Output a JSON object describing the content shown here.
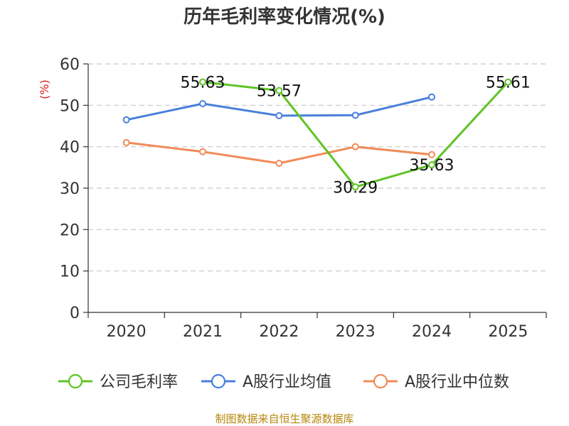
{
  "chart_data": {
    "type": "line",
    "title": "历年毛利率变化情况(%)",
    "ylabel": "(%)",
    "xlabel": "",
    "categories": [
      "2020",
      "2021",
      "2022",
      "2023",
      "2024",
      "2025"
    ],
    "ylim": [
      0,
      60
    ],
    "yticks": [
      0,
      10,
      20,
      30,
      40,
      50,
      60
    ],
    "grid": true,
    "legend_position": "bottom",
    "series": [
      {
        "name": "公司毛利率",
        "color": "#5ec426",
        "values": [
          null,
          55.63,
          53.57,
          30.29,
          35.63,
          55.61
        ],
        "labels": [
          null,
          "55.63",
          "53.57",
          "30.29",
          "35.63",
          "55.61"
        ]
      },
      {
        "name": "A股行业均值",
        "color": "#4a7fdc",
        "values": [
          46.5,
          50.4,
          47.5,
          47.6,
          52.0,
          null
        ]
      },
      {
        "name": "A股行业中位数",
        "color": "#f28b58",
        "values": [
          41.0,
          38.8,
          36.0,
          40.0,
          38.1,
          null
        ]
      }
    ]
  },
  "source": "制图数据来自恒生聚源数据库"
}
